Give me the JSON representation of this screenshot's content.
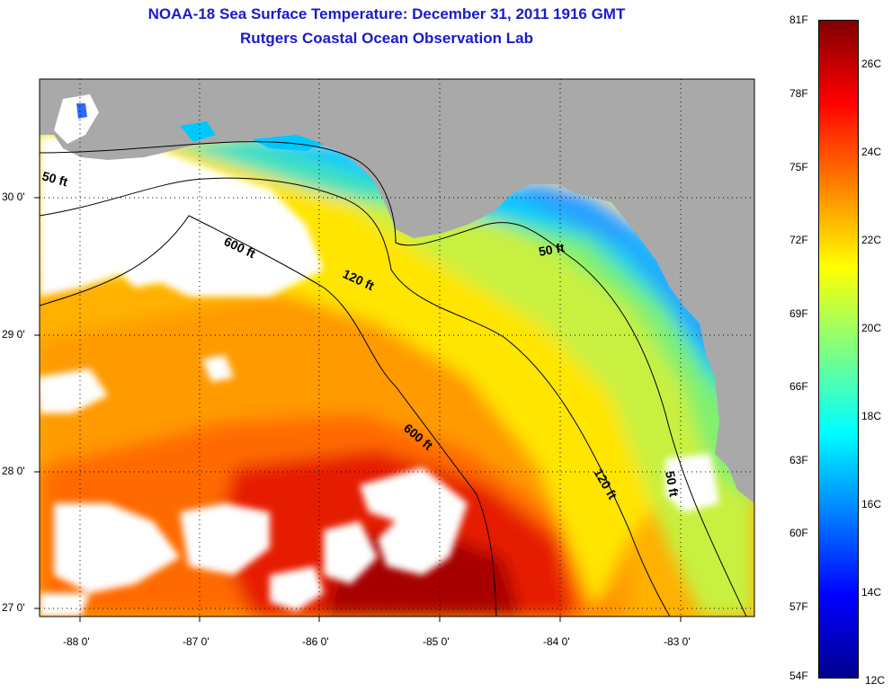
{
  "header": {
    "title": "NOAA-18 Sea Surface Temperature:  December 31, 2011 1916 GMT",
    "subtitle": "Rutgers Coastal Ocean Observation Lab"
  },
  "map": {
    "lon_range": [
      -88.35,
      -82.4
    ],
    "lat_range": [
      26.95,
      30.85
    ],
    "lon_ticks": [
      "-88 0'",
      "-87 0'",
      "-86 0'",
      "-85 0'",
      "-84 0'",
      "-83 0'"
    ],
    "lat_ticks": [
      "30 0'",
      "29 0'",
      "28 0'",
      "27 0'"
    ],
    "contour_labels": [
      "50 ft",
      "600 ft",
      "120 ft",
      "50 ft",
      "600 ft",
      "120 ft",
      "50 ft"
    ],
    "colors": {
      "land": "#a9a9a9",
      "cloud": "#ffffff",
      "contour": "#000000"
    }
  },
  "colorbar": {
    "fahrenheit": [
      "81F",
      "78F",
      "75F",
      "72F",
      "69F",
      "66F",
      "63F",
      "60F",
      "57F",
      "54F"
    ],
    "celsius": [
      "26C",
      "24C",
      "22C",
      "20C",
      "18C",
      "16C",
      "14C",
      "12C"
    ],
    "colors": [
      "#7f0000",
      "#ff0000",
      "#ff8000",
      "#ffff00",
      "#80ff80",
      "#00ffff",
      "#0080ff",
      "#0000ff",
      "#00008f"
    ]
  }
}
